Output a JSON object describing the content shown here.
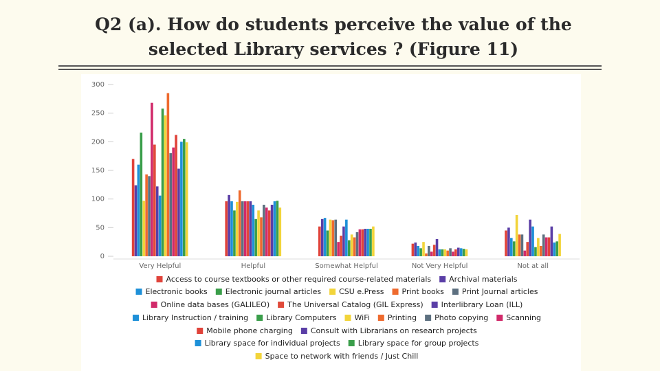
{
  "title": [
    "Q2 (a). How do students perceive the value of the",
    "selected Library  services ? (Figure 11)"
  ],
  "chart_data": {
    "type": "bar",
    "categories": [
      "Very Helpful",
      "Helpful",
      "Somewhat Helpful",
      "Not Very Helpful",
      "Not at all"
    ],
    "ylim": [
      0,
      300
    ],
    "yticks": [
      0,
      50,
      100,
      150,
      200,
      250,
      300
    ],
    "series": [
      {
        "name": "Access to course textbooks or other required course-related materials",
        "color": "#e0433a",
        "values": [
          170,
          96,
          52,
          22,
          45
        ]
      },
      {
        "name": "Archival materials",
        "color": "#5a3ea6",
        "values": [
          124,
          107,
          65,
          24,
          50
        ]
      },
      {
        "name": "Electronic books",
        "color": "#1e90d8",
        "values": [
          160,
          96,
          67,
          18,
          32
        ]
      },
      {
        "name": "Electronic journal articles",
        "color": "#3a9e4a",
        "values": [
          216,
          80,
          45,
          14,
          26
        ]
      },
      {
        "name": "CSU e.Press",
        "color": "#f2d43a",
        "values": [
          97,
          95,
          64,
          25,
          72
        ]
      },
      {
        "name": "Print books",
        "color": "#ee6a2e",
        "values": [
          143,
          115,
          63,
          5,
          38
        ]
      },
      {
        "name": "Print Journal articles",
        "color": "#5d7080",
        "values": [
          140,
          96,
          64,
          18,
          38
        ]
      },
      {
        "name": "Online data bases (GALILEO)",
        "color": "#d12a6a",
        "values": [
          268,
          96,
          25,
          8,
          10
        ]
      },
      {
        "name": "The Universal Catalog (GIL Express)",
        "color": "#e04a3a",
        "values": [
          195,
          96,
          36,
          20,
          25
        ]
      },
      {
        "name": "Interlibrary Loan (ILL)",
        "color": "#5a3ea6",
        "values": [
          122,
          96,
          52,
          30,
          64
        ]
      },
      {
        "name": "Library Instruction / training",
        "color": "#1e90d8",
        "values": [
          106,
          90,
          64,
          12,
          52
        ]
      },
      {
        "name": "Library Computers",
        "color": "#3a9e4a",
        "values": [
          258,
          65,
          28,
          12,
          16
        ]
      },
      {
        "name": "WiFi",
        "color": "#f2d43a",
        "values": [
          246,
          80,
          38,
          12,
          32
        ]
      },
      {
        "name": "Printing",
        "color": "#ee6a2e",
        "values": [
          285,
          68,
          33,
          10,
          18
        ]
      },
      {
        "name": "Photo copying",
        "color": "#5d7080",
        "values": [
          180,
          90,
          42,
          14,
          38
        ]
      },
      {
        "name": "Scanning",
        "color": "#d12a6a",
        "values": [
          190,
          85,
          47,
          8,
          33
        ]
      },
      {
        "name": "Mobile phone charging",
        "color": "#e0433a",
        "values": [
          212,
          80,
          47,
          12,
          33
        ]
      },
      {
        "name": "Consult with Librarians on research projects",
        "color": "#5a3ea6",
        "values": [
          153,
          90,
          48,
          15,
          52
        ]
      },
      {
        "name": "Library space for individual projects",
        "color": "#1e90d8",
        "values": [
          200,
          96,
          48,
          14,
          24
        ]
      },
      {
        "name": "Library space for group projects",
        "color": "#3a9e4a",
        "values": [
          205,
          97,
          48,
          13,
          26
        ]
      },
      {
        "name": "Space to network with friends / Just Chill",
        "color": "#f2d43a",
        "values": [
          199,
          85,
          52,
          12,
          39
        ]
      }
    ]
  }
}
